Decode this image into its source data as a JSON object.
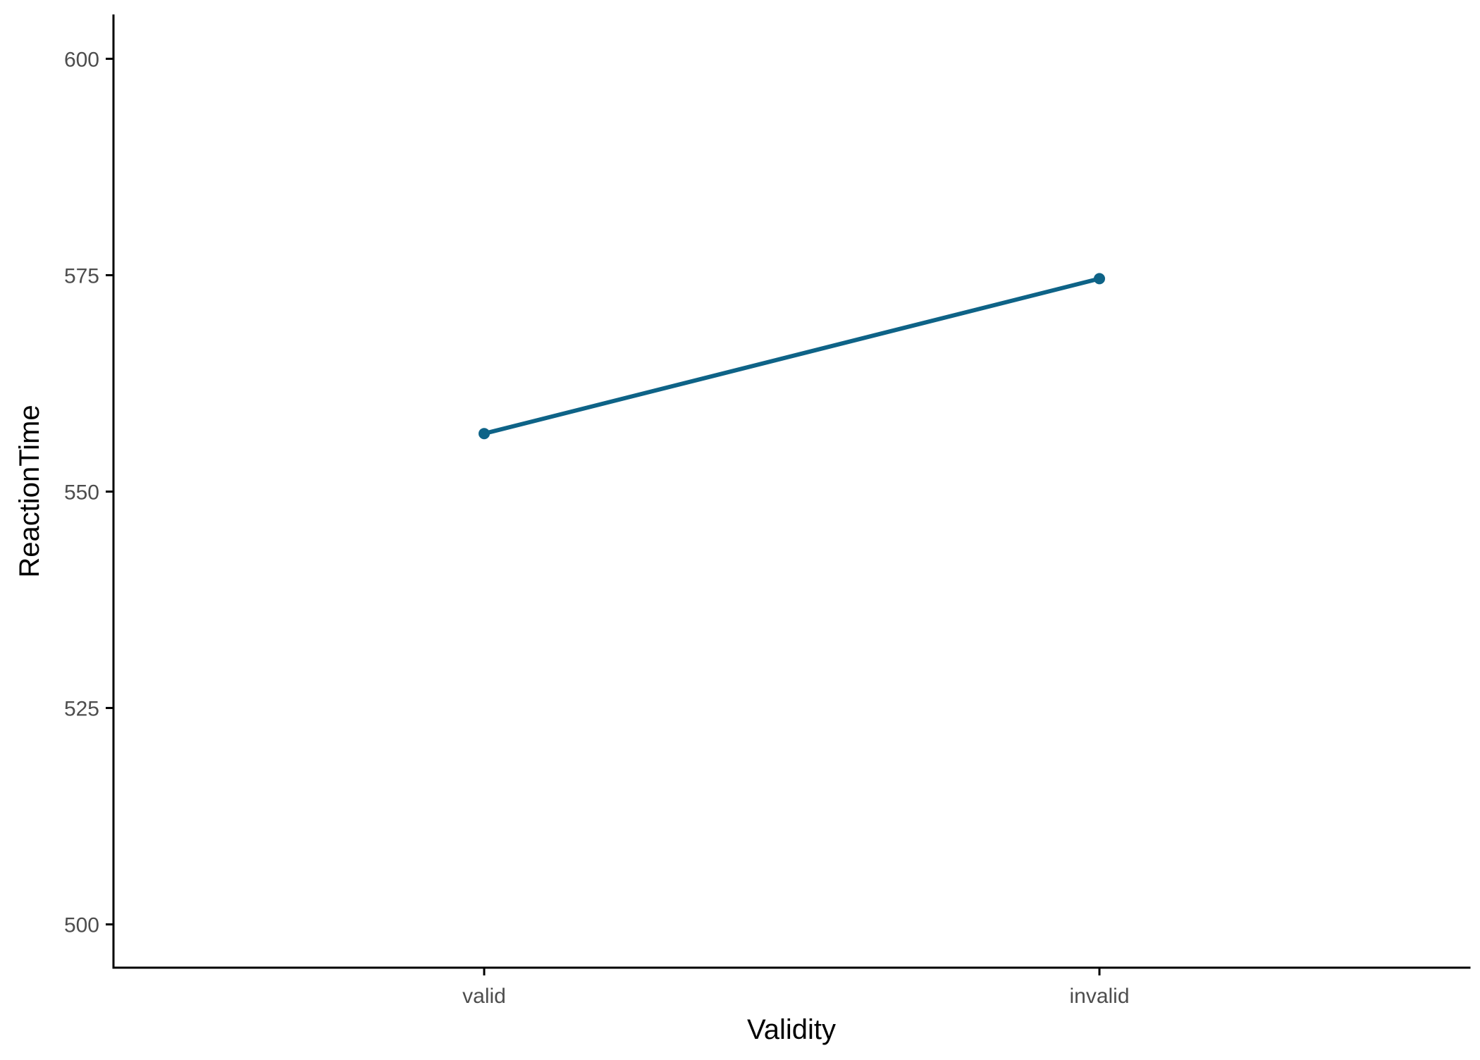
{
  "chart_data": {
    "type": "line",
    "title": "",
    "xlabel": "Validity",
    "ylabel": "ReactionTime",
    "categories": [
      "valid",
      "invalid"
    ],
    "series": [
      {
        "values": [
          556.7,
          574.6
        ]
      }
    ],
    "ylim": [
      495,
      605
    ],
    "yticks": [
      500,
      525,
      550,
      575,
      600
    ],
    "grid": false,
    "legend": "none",
    "colors": {
      "series": "#0e6387",
      "axis": "#000000",
      "tick_label": "#4d4d4d"
    }
  }
}
